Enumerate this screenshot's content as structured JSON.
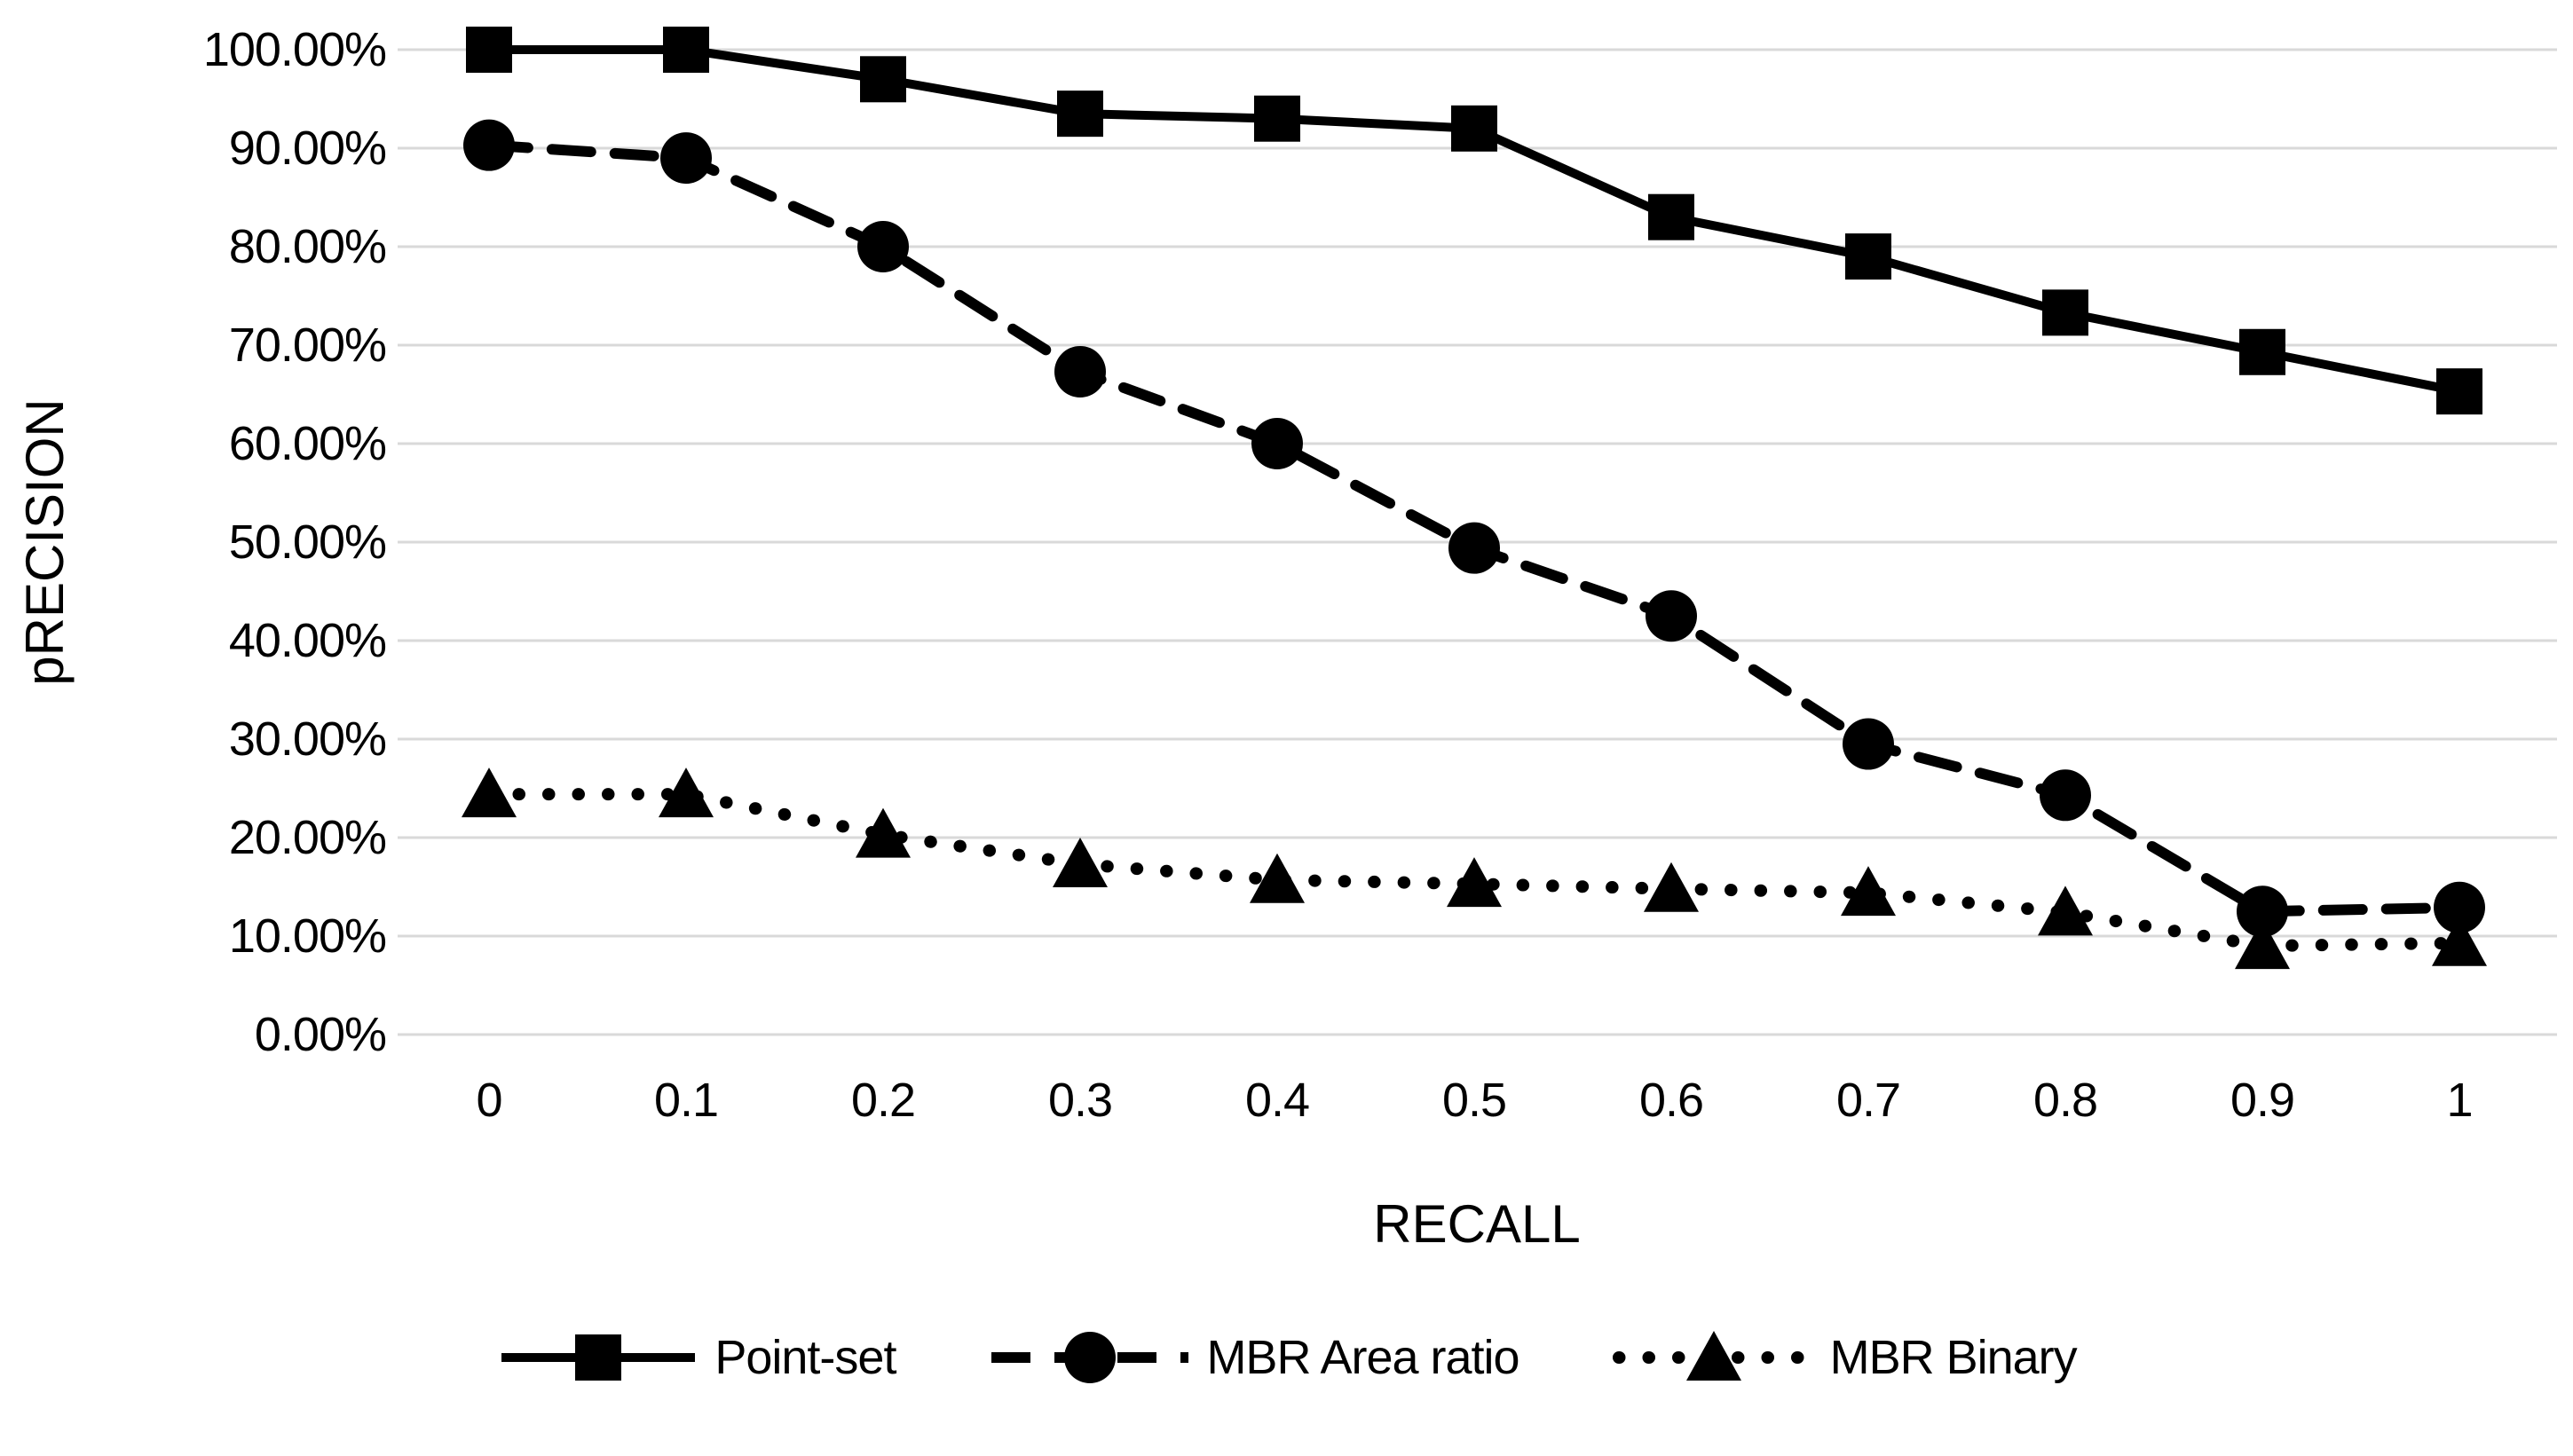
{
  "chart_data": {
    "type": "line",
    "title": "",
    "xlabel": "RECALL",
    "ylabel": "pRECISION",
    "x": [
      0,
      0.1,
      0.2,
      0.3,
      0.4,
      0.5,
      0.6,
      0.7,
      0.8,
      0.9,
      1
    ],
    "x_tick_labels": [
      "0",
      "0.1",
      "0.2",
      "0.3",
      "0.4",
      "0.5",
      "0.6",
      "0.7",
      "0.8",
      "0.9",
      "1"
    ],
    "y_tick_labels": [
      "100.00%",
      "90.00%",
      "80.00%",
      "70.00%",
      "60.00%",
      "50.00%",
      "40.00%",
      "30.00%",
      "20.00%",
      "10.00%",
      "0.00%"
    ],
    "ylim": [
      0,
      100
    ],
    "grid": "horizontal-only",
    "legend_position": "bottom-center",
    "series": [
      {
        "name": "Point-set",
        "marker": "square",
        "line_style": "solid",
        "values": [
          100,
          100,
          97,
          93.5,
          93,
          92,
          83,
          79,
          73.3,
          69.3,
          65.3
        ]
      },
      {
        "name": "MBR Area ratio",
        "marker": "circle",
        "line_style": "dashed",
        "values": [
          90.3,
          89,
          80,
          67.3,
          60,
          49.4,
          42.5,
          29.5,
          24.3,
          12.5,
          12.9
        ]
      },
      {
        "name": "MBR Binary",
        "marker": "triangle",
        "line_style": "dotted",
        "values": [
          24.4,
          24.4,
          20.3,
          17.3,
          15.7,
          15.3,
          14.8,
          14.4,
          12.4,
          9,
          9.3
        ]
      }
    ],
    "colors": {
      "series": "#000000",
      "grid": "#d9d9d9",
      "background": "#ffffff",
      "text": "#000000"
    }
  }
}
